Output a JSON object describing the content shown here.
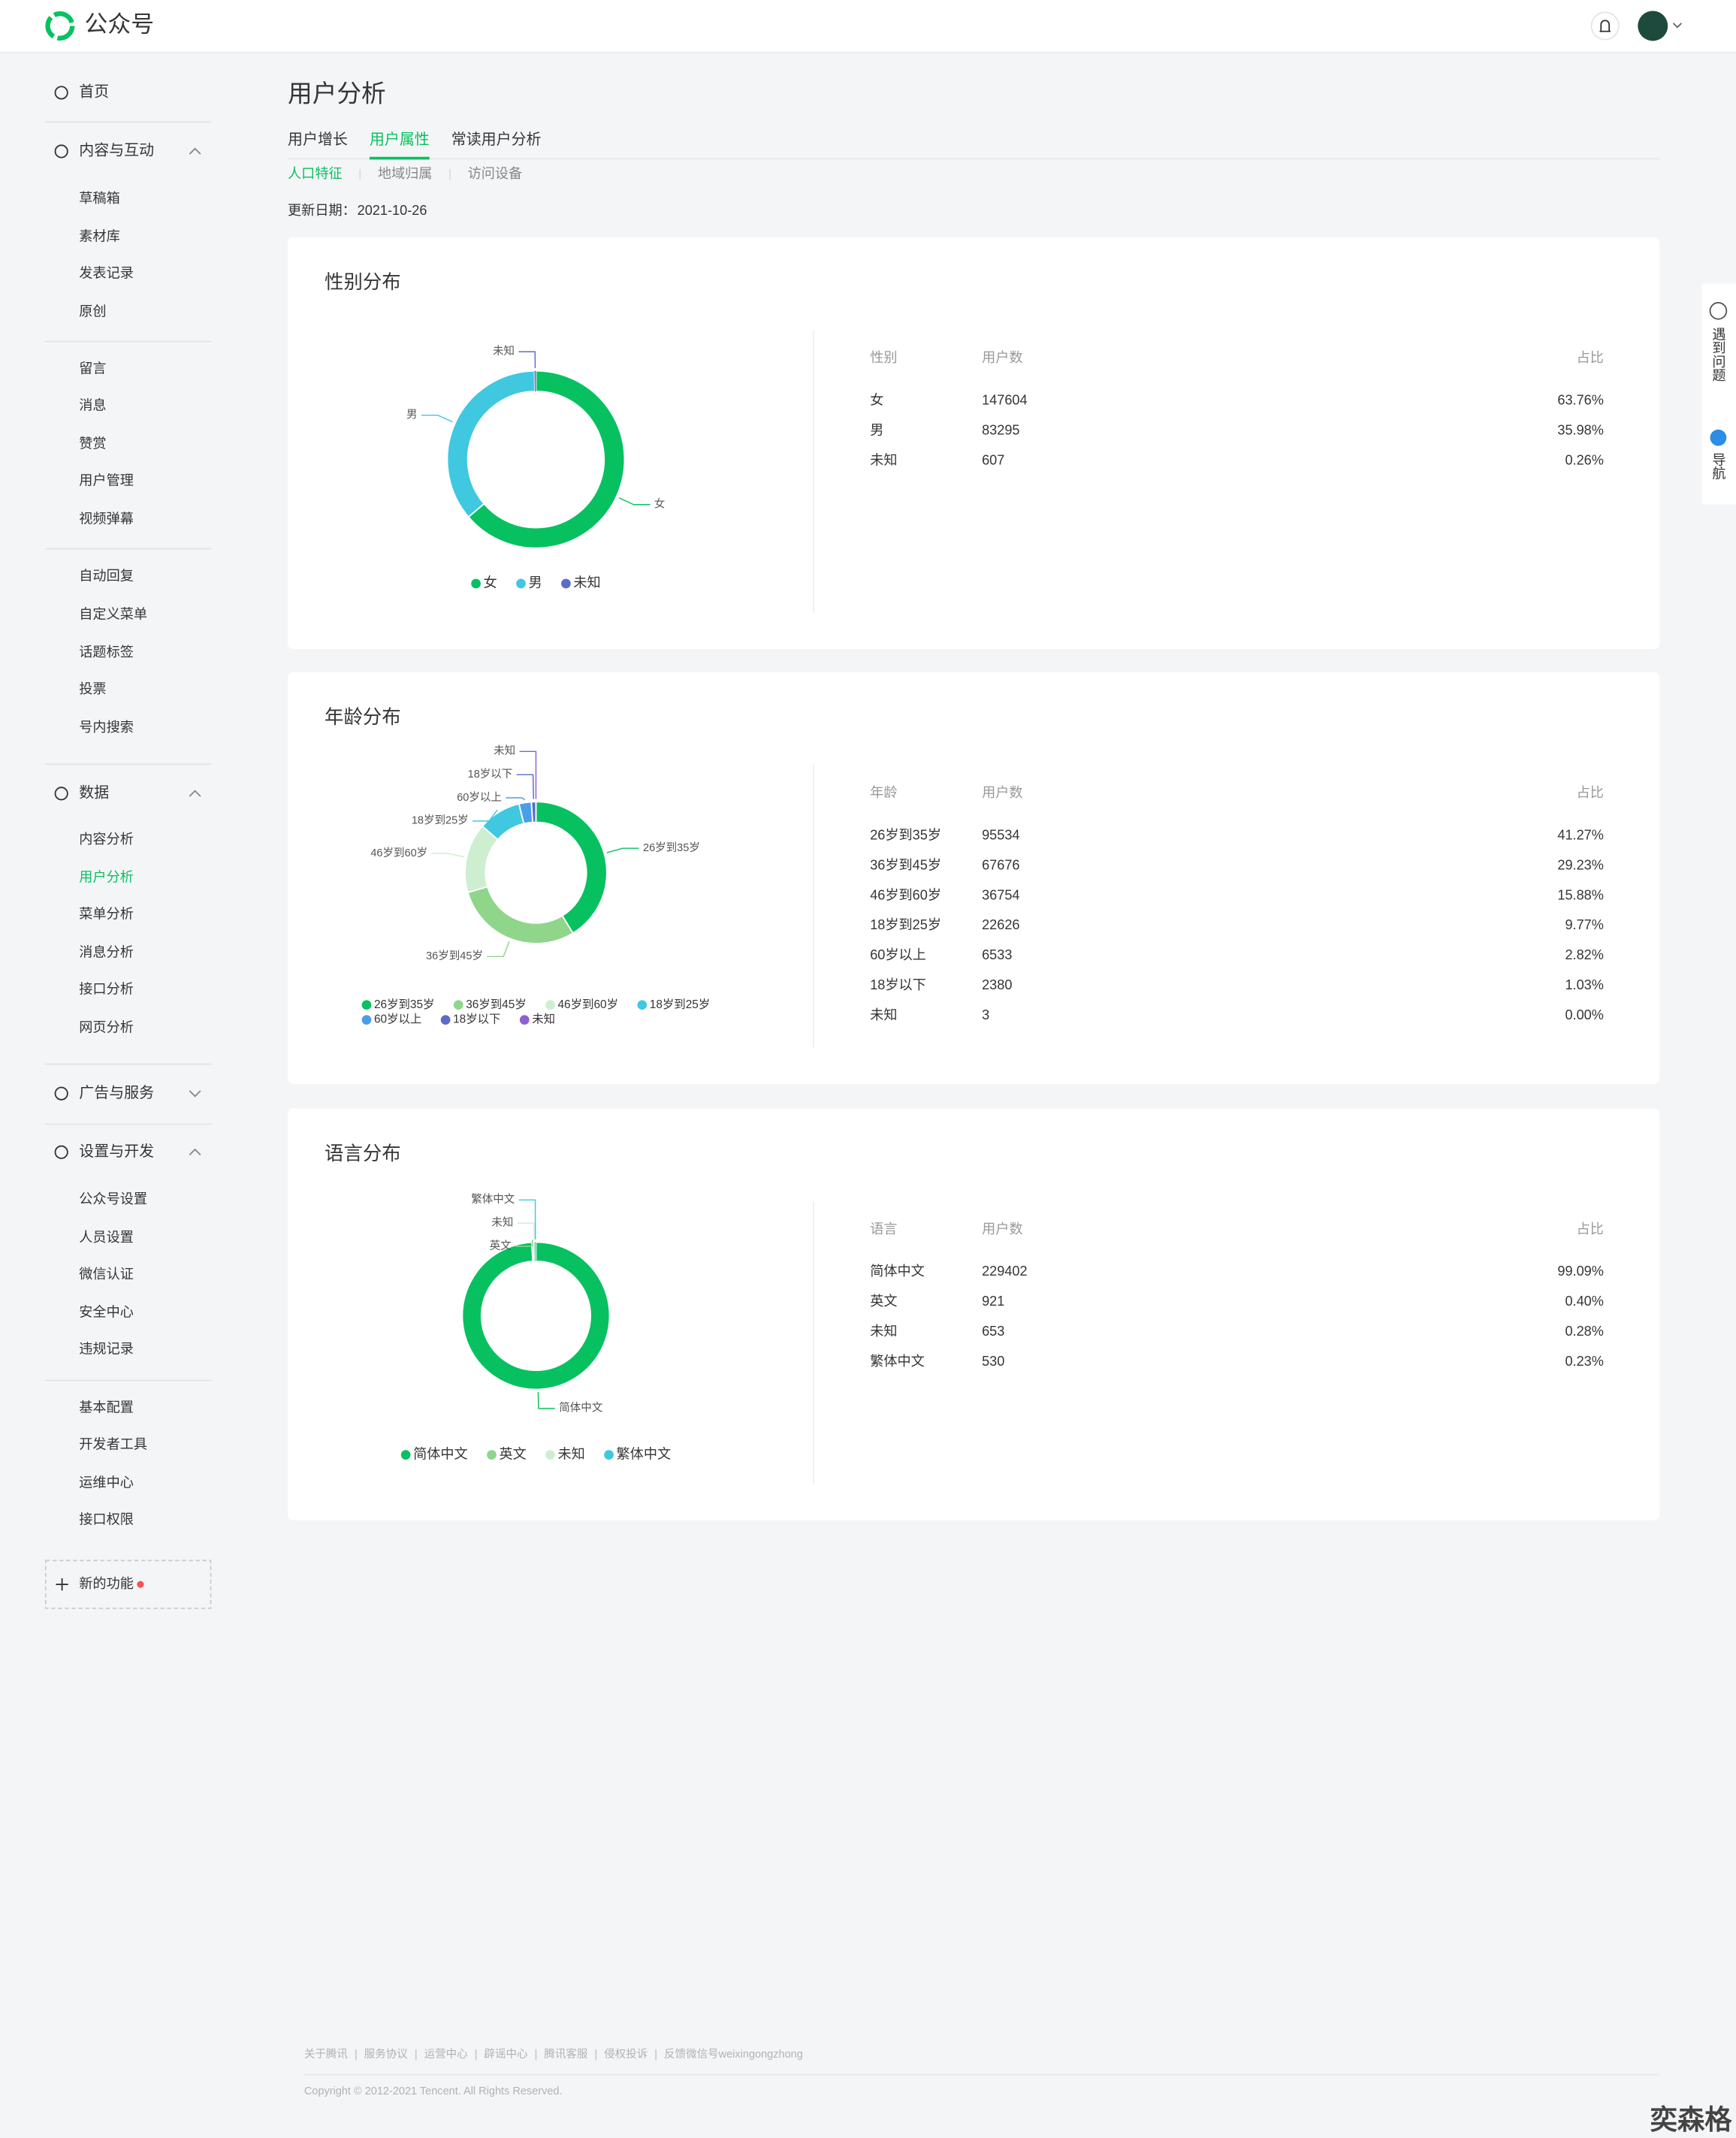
{
  "header": {
    "brand": "公众号"
  },
  "sidebar": {
    "items": [
      "首页",
      "内容与互动",
      "草稿箱",
      "素材库",
      "发表记录",
      "原创",
      "留言",
      "消息",
      "赞赏",
      "用户管理",
      "视频弹幕",
      "自动回复",
      "自定义菜单",
      "话题标签",
      "投票",
      "号内搜索",
      "数据",
      "内容分析",
      "用户分析",
      "菜单分析",
      "消息分析",
      "接口分析",
      "网页分析",
      "广告与服务",
      "设置与开发",
      "公众号设置",
      "人员设置",
      "微信认证",
      "安全中心",
      "违规记录",
      "基本配置",
      "开发者工具",
      "运维中心",
      "接口权限"
    ],
    "new_feature": "新的功能"
  },
  "page": {
    "title": "用户分析",
    "tabs": [
      "用户增长",
      "用户属性",
      "常读用户分析"
    ],
    "subtabs": [
      "人口特征",
      "地域归属",
      "访问设备"
    ],
    "update_label": "更新日期：",
    "update_date": "2021-10-26"
  },
  "sections": [
    {
      "title": "性别分布",
      "columns": [
        "性别",
        "用户数",
        "占比"
      ],
      "categories": [
        "女",
        "男",
        "未知"
      ],
      "users": [
        147604,
        83295,
        607
      ],
      "share_labels": [
        "63.76%",
        "35.98%",
        "0.26%"
      ],
      "colors": [
        "#07c160",
        "#3fc8e0",
        "#5b6bc9"
      ]
    },
    {
      "title": "年龄分布",
      "columns": [
        "年龄",
        "用户数",
        "占比"
      ],
      "categories": [
        "26岁到35岁",
        "36岁到45岁",
        "46岁到60岁",
        "18岁到25岁",
        "60岁以上",
        "18岁以下",
        "未知"
      ],
      "users": [
        95534,
        67676,
        36754,
        22626,
        6533,
        2380,
        3
      ],
      "share_labels": [
        "41.27%",
        "29.23%",
        "15.88%",
        "9.77%",
        "2.82%",
        "1.03%",
        "0.00%"
      ],
      "colors": [
        "#07c160",
        "#8fd68a",
        "#cdeed0",
        "#3fc8e0",
        "#4a9ee8",
        "#5b6bc9",
        "#8e5fd0"
      ]
    },
    {
      "title": "语言分布",
      "columns": [
        "语言",
        "用户数",
        "占比"
      ],
      "categories": [
        "简体中文",
        "英文",
        "未知",
        "繁体中文"
      ],
      "users": [
        229402,
        921,
        653,
        530
      ],
      "share_labels": [
        "99.09%",
        "0.40%",
        "0.28%",
        "0.23%"
      ],
      "colors": [
        "#07c160",
        "#8fd68a",
        "#cdeed0",
        "#3fc8e0"
      ]
    }
  ],
  "help": {
    "problem": "遇到问题",
    "nav": "导航"
  },
  "footer": {
    "links": [
      "关于腾讯",
      "服务协议",
      "运营中心",
      "辟谣中心",
      "腾讯客服",
      "侵权投诉",
      "反馈微信号weixingongzhong"
    ],
    "copyright": "Copyright © 2012-2021 Tencent. All Rights Reserved."
  },
  "watermark": "奕森格"
}
